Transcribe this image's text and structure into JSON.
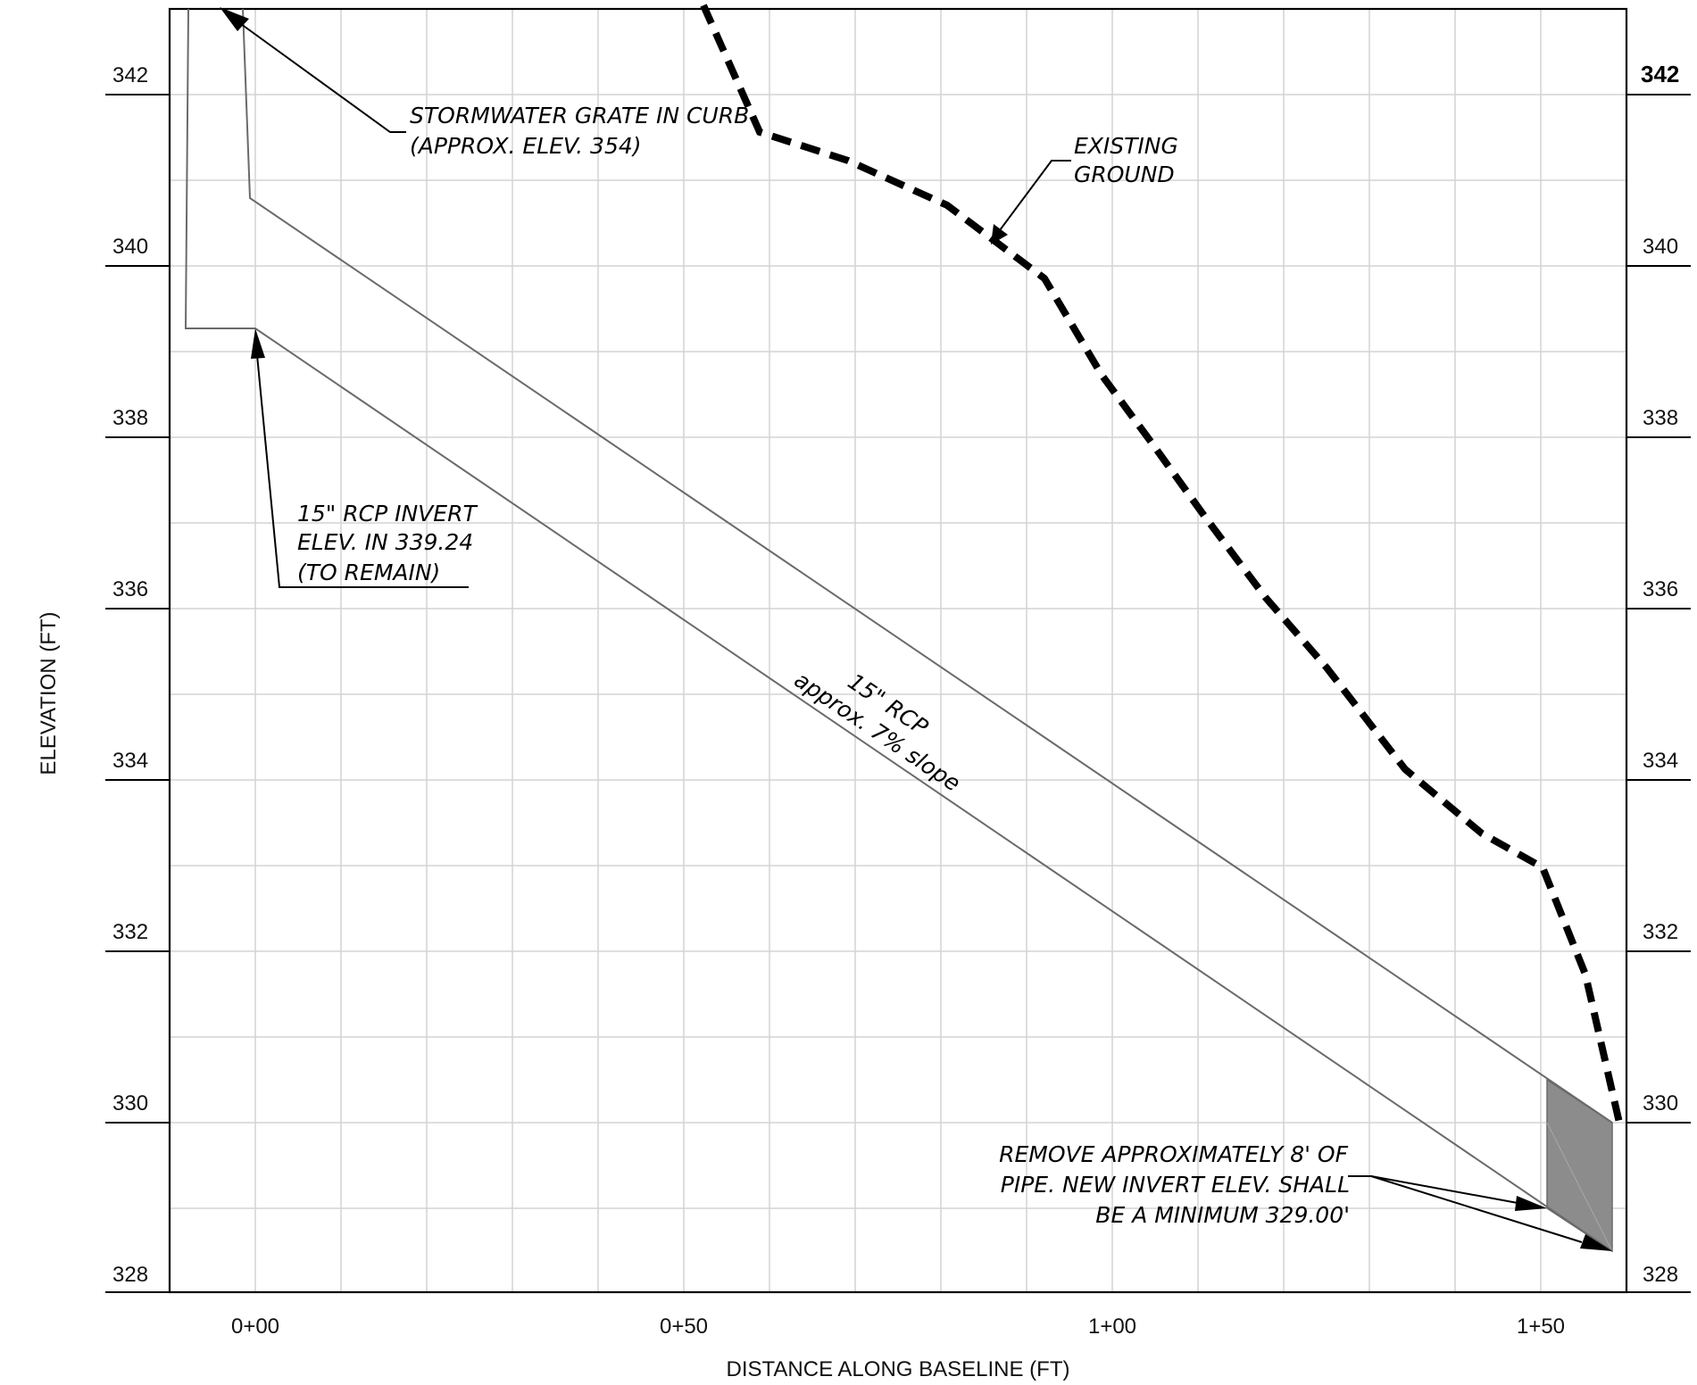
{
  "axes": {
    "x_title": "DISTANCE ALONG BASELINE (FT)",
    "y_title": "ELEVATION (FT)",
    "x_ticks": [
      "0+00",
      "0+50",
      "1+00",
      "1+50"
    ],
    "y_ticks_left": [
      "342",
      "340",
      "338",
      "336",
      "334",
      "332",
      "330",
      "328"
    ],
    "y_ticks_right": [
      "342",
      "340",
      "338",
      "336",
      "334",
      "332",
      "330",
      "328"
    ]
  },
  "annotations": {
    "grate_line1": "STORMWATER GRATE IN CURB",
    "grate_line2": "(APPROX. ELEV. 354)",
    "ground_line1": "EXISTING",
    "ground_line2": "GROUND",
    "invert_line1": "15\" RCP INVERT",
    "invert_line2": "ELEV. IN 339.24",
    "invert_line3": "(TO REMAIN)",
    "pipe_line1": "15\" RCP",
    "pipe_line2": "approx. 7% slope",
    "remove_line1": "REMOVE APPROXIMATELY 8' OF",
    "remove_line2": "PIPE. NEW INVERT ELEV. SHALL",
    "remove_line3": "BE A MINIMUM 329.00'"
  },
  "colors": {
    "ground": "#000000",
    "pipe": "#6a6a6a",
    "removed_section": "#8c8c8c",
    "grid": "#d4d4d4"
  }
}
